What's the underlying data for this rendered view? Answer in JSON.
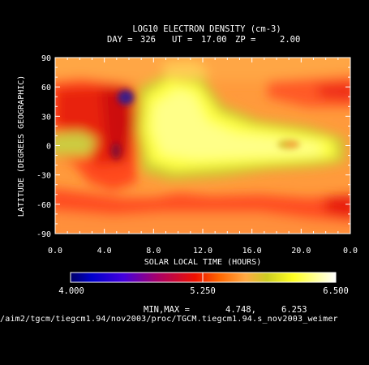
{
  "chart_data": {
    "type": "heatmap",
    "title": "LOG10 ELECTRON DENSITY (cm-3)",
    "subtitle": {
      "day_label": "DAY =",
      "day": "326",
      "ut_label": "UT =",
      "ut": "17.00",
      "zp_label": "ZP =",
      "zp": "2.00"
    },
    "xlabel": "SOLAR LOCAL TIME (HOURS)",
    "ylabel": "LATITUDE (DEGREES GEOGRAPHIC)",
    "xlim": [
      0,
      24
    ],
    "ylim": [
      -90,
      90
    ],
    "x_ticks": [
      "0.0",
      "4.0",
      "8.0",
      "12.0",
      "16.0",
      "20.0",
      "0.0"
    ],
    "y_ticks": [
      "90",
      "60",
      "30",
      "0",
      "-30",
      "-60",
      "-90"
    ],
    "colorbar": {
      "min_label": "4.000",
      "mid_label": "5.250",
      "max_label": "6.500",
      "range": [
        4.0,
        6.5
      ],
      "stops": [
        "#000066",
        "#0000ff",
        "#6600cc",
        "#cc0033",
        "#ff3300",
        "#ff8800",
        "#ffbb55",
        "#cccc00",
        "#ffff33",
        "#ffffff"
      ]
    },
    "min_max": {
      "label": "MIN,MAX =",
      "min": "4.748,",
      "max": "6.253"
    },
    "footer_path": "/aim2/tgcm/tiegcm1.94/nov2003/proc/TGCM.tiegcm1.94.s_nov2003_weimer"
  }
}
